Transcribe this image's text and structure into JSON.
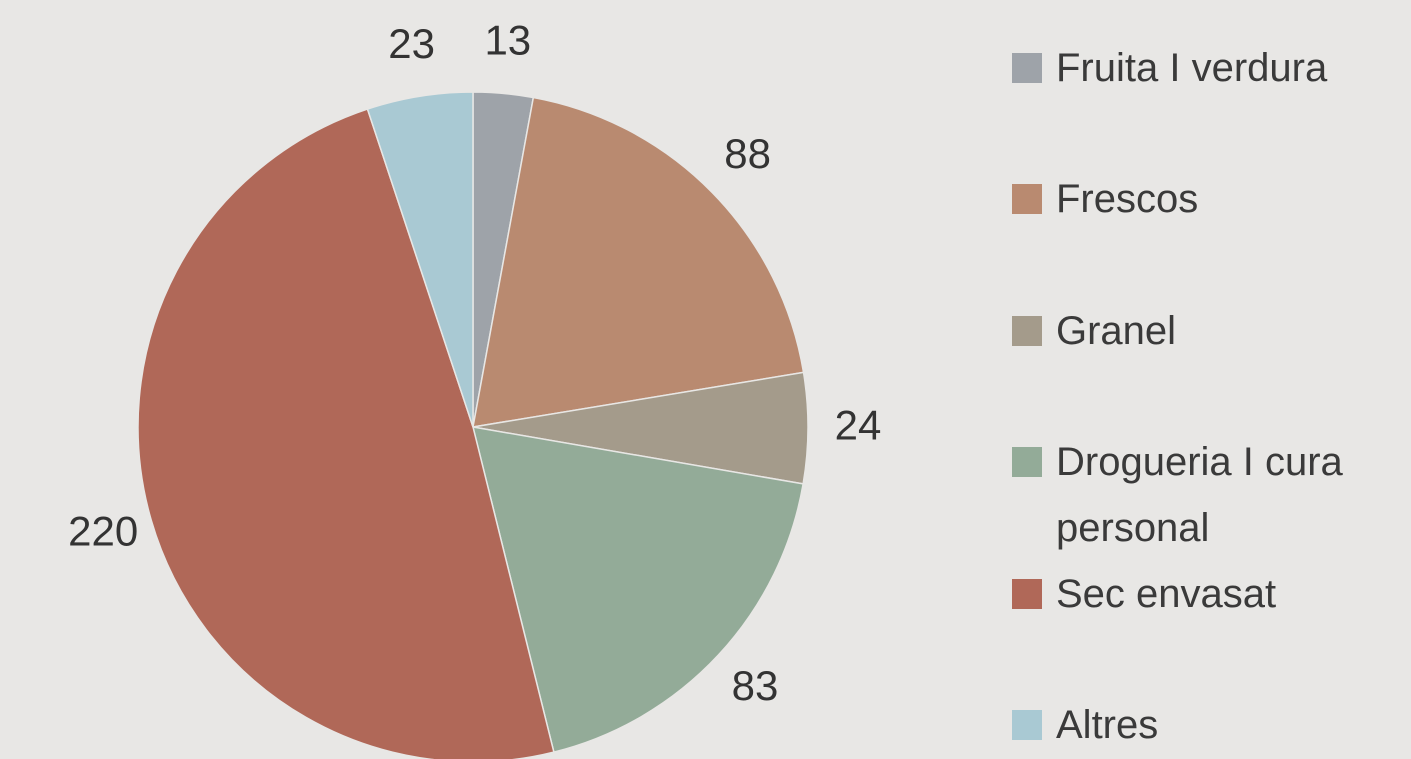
{
  "chart_data": {
    "type": "pie",
    "categories": [
      "Fruita I verdura",
      "Frescos",
      "Granel",
      "Drogueria I cura personal",
      "Sec envasat",
      "Altres"
    ],
    "values": [
      13,
      88,
      24,
      83,
      220,
      23
    ],
    "colors": [
      "#9ea3a9",
      "#b98a70",
      "#a49b8b",
      "#93ab98",
      "#b06858",
      "#a9c9d3"
    ],
    "legend": "right"
  }
}
